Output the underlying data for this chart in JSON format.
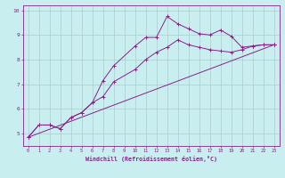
{
  "xlabel": "Windchill (Refroidissement éolien,°C)",
  "bg_color": "#c8eef0",
  "line_color": "#882288",
  "grid_color": "#aacccc",
  "xlim": [
    -0.5,
    23.5
  ],
  "ylim": [
    4.5,
    10.2
  ],
  "xticks": [
    0,
    1,
    2,
    3,
    4,
    5,
    6,
    7,
    8,
    9,
    10,
    11,
    12,
    13,
    14,
    15,
    16,
    17,
    18,
    19,
    20,
    21,
    22,
    23
  ],
  "yticks": [
    5,
    6,
    7,
    8,
    9,
    10
  ],
  "line1_x": [
    0,
    1,
    2,
    3,
    4,
    5,
    6,
    7,
    8,
    10,
    11,
    12,
    13,
    14,
    15,
    16,
    17,
    18,
    19,
    20,
    21,
    22,
    23
  ],
  "line1_y": [
    4.85,
    5.35,
    5.35,
    5.2,
    5.65,
    5.85,
    6.25,
    7.15,
    7.75,
    8.55,
    8.9,
    8.9,
    9.75,
    9.45,
    9.25,
    9.05,
    9.0,
    9.2,
    8.95,
    8.5,
    8.55,
    8.6,
    8.6
  ],
  "line2_x": [
    0,
    1,
    2,
    3,
    4,
    5,
    6,
    7,
    8,
    10,
    11,
    12,
    13,
    14,
    15,
    16,
    17,
    18,
    19,
    20,
    21,
    22,
    23
  ],
  "line2_y": [
    4.85,
    5.35,
    5.35,
    5.2,
    5.65,
    5.85,
    6.25,
    6.5,
    7.1,
    7.6,
    8.0,
    8.3,
    8.5,
    8.8,
    8.6,
    8.5,
    8.4,
    8.35,
    8.3,
    8.4,
    8.55,
    8.6,
    8.6
  ],
  "line3_x": [
    0,
    23
  ],
  "line3_y": [
    4.85,
    8.6
  ]
}
